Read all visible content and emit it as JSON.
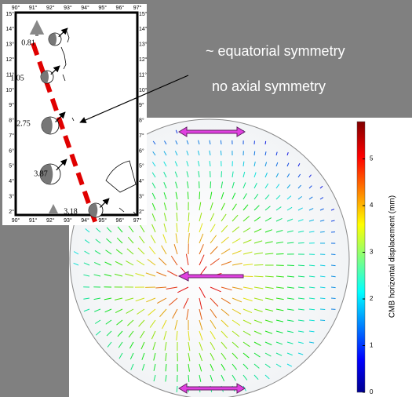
{
  "map": {
    "lon_labels": [
      "90°",
      "91°",
      "92°",
      "93°",
      "94°",
      "95°",
      "96°",
      "97°"
    ],
    "lat_labels": [
      "15°",
      "14°",
      "13°",
      "12°",
      "11°",
      "10°",
      "9°",
      "8°",
      "7°",
      "6°",
      "5°",
      "4°",
      "3°",
      "2°"
    ],
    "events": [
      "0.81",
      "1.05",
      "2.75",
      "3.87",
      "3.18"
    ]
  },
  "notes": [
    "~  equatorial symmetry",
    "no axial symmetry"
  ],
  "colorbar": {
    "label": "CMB horizontal displacement (mm)",
    "ticks": [
      0,
      1,
      2,
      3,
      4,
      5
    ],
    "range": [
      0,
      5.8
    ]
  }
}
